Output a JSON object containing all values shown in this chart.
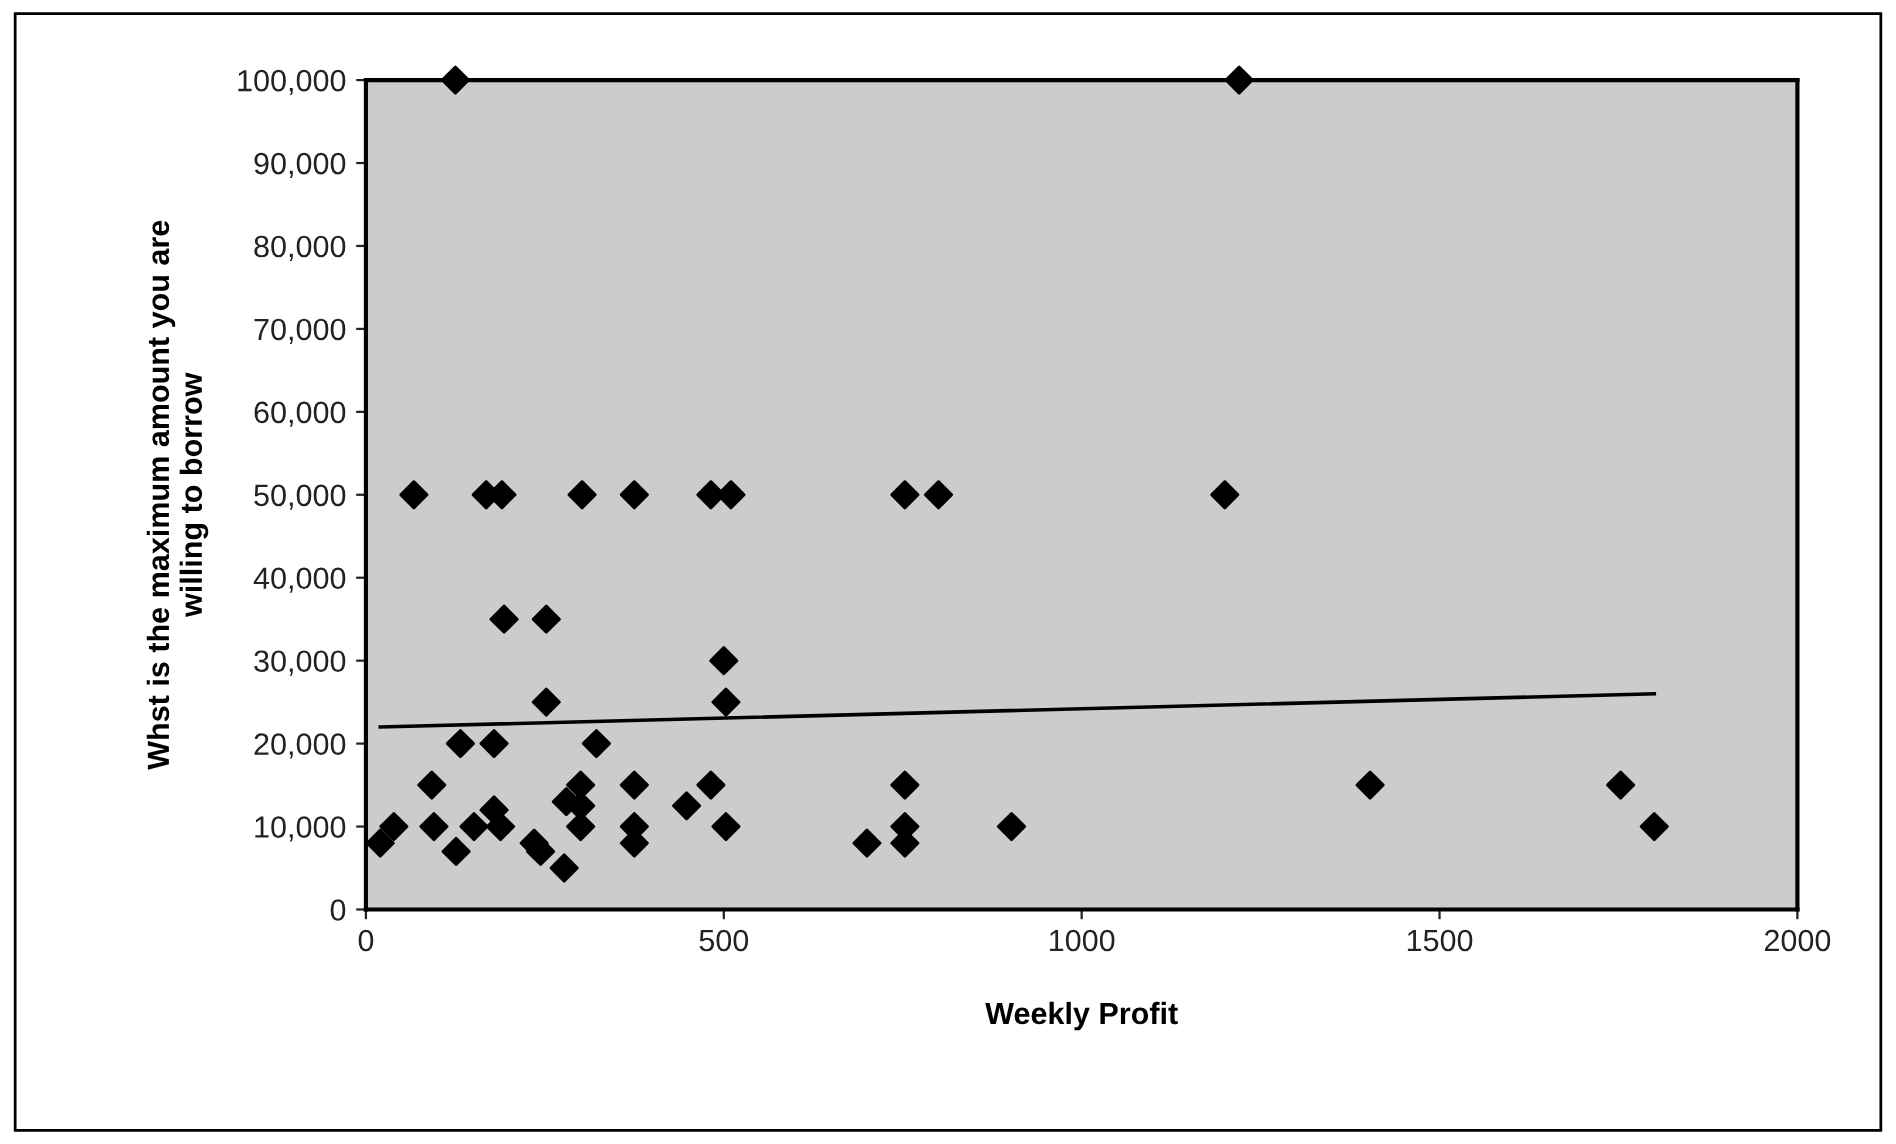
{
  "chart_data": {
    "type": "scatter",
    "xlabel": "Weekly Profit",
    "ylabel": "Whst is the maximum amount you are\nwilling to borrow",
    "xlim": [
      0,
      2000
    ],
    "xticks": [
      0,
      500,
      1000,
      1500,
      2000
    ],
    "ylim": [
      0,
      100000
    ],
    "yticks": [
      {
        "value": 0,
        "label": "0"
      },
      {
        "value": 10000,
        "label": "10,000"
      },
      {
        "value": 20000,
        "label": "20,000"
      },
      {
        "value": 30000,
        "label": "30,000"
      },
      {
        "value": 40000,
        "label": "40,000"
      },
      {
        "value": 50000,
        "label": "50,000"
      },
      {
        "value": 60000,
        "label": "60,000"
      },
      {
        "value": 70000,
        "label": "70,000"
      },
      {
        "value": 80000,
        "label": "80,000"
      },
      {
        "value": 90000,
        "label": "90,000"
      },
      {
        "value": 100000,
        "label": "100,000"
      }
    ],
    "grid": false,
    "legend": false,
    "series": [
      {
        "marker": "diamond",
        "color": "#000000",
        "x": [
          125,
          1220,
          67,
          168,
          190,
          302,
          375,
          482,
          510,
          753,
          800,
          1200,
          193,
          252,
          500,
          503,
          252,
          132,
          179,
          322,
          92,
          375,
          375,
          375,
          482,
          448,
          503,
          753,
          753,
          753,
          700,
          902,
          1403,
          1753,
          1800,
          300,
          280,
          300,
          300,
          277,
          235,
          244,
          179,
          188,
          151,
          126,
          20,
          39,
          95
        ],
        "values": [
          100000,
          100000,
          50000,
          50000,
          50000,
          50000,
          50000,
          50000,
          50000,
          50000,
          50000,
          50000,
          35000,
          35000,
          30000,
          25000,
          25000,
          20000,
          20000,
          20000,
          15000,
          15000,
          10000,
          8000,
          15000,
          12500,
          10000,
          15000,
          10000,
          8000,
          8000,
          10000,
          15000,
          15000,
          10000,
          15000,
          13000,
          12500,
          10000,
          5000,
          8000,
          7000,
          12000,
          10000,
          10000,
          7000,
          8000,
          10000,
          10000
        ]
      },
      {
        "type": "line",
        "marker": "none",
        "color": "#000000",
        "x": [
          20,
          1800
        ],
        "values": [
          22000,
          26000
        ]
      }
    ]
  }
}
